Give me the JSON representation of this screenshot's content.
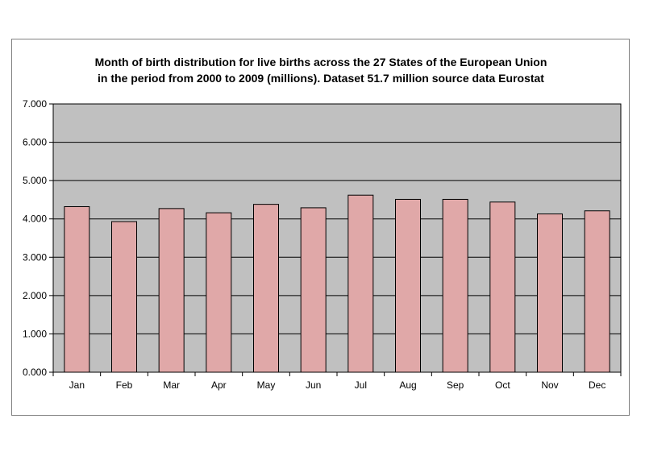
{
  "chart_data": {
    "type": "bar",
    "title_lines": [
      "Month of birth distribution for live births across the 27 States of the European Union",
      "in the period from 2000 to 2009 (millions). Dataset 51.7 million source data Eurostat"
    ],
    "categories": [
      "Jan",
      "Feb",
      "Mar",
      "Apr",
      "May",
      "Jun",
      "Jul",
      "Aug",
      "Sep",
      "Oct",
      "Nov",
      "Dec"
    ],
    "values": [
      4.32,
      3.93,
      4.27,
      4.16,
      4.38,
      4.29,
      4.62,
      4.51,
      4.51,
      4.44,
      4.13,
      4.21
    ],
    "ylim": [
      0,
      7
    ],
    "ytick_values": [
      0,
      1,
      2,
      3,
      4,
      5,
      6,
      7
    ],
    "ytick_labels": [
      "0.000",
      "1.000",
      "2.000",
      "3.000",
      "4.000",
      "5.000",
      "6.000",
      "7.000"
    ],
    "grid": true,
    "legend": "none",
    "colors": {
      "plot_background": "#c0c0c0",
      "bar_fill": "#e0a8a8",
      "bar_stroke": "#000000",
      "gridline": "#000000"
    }
  }
}
